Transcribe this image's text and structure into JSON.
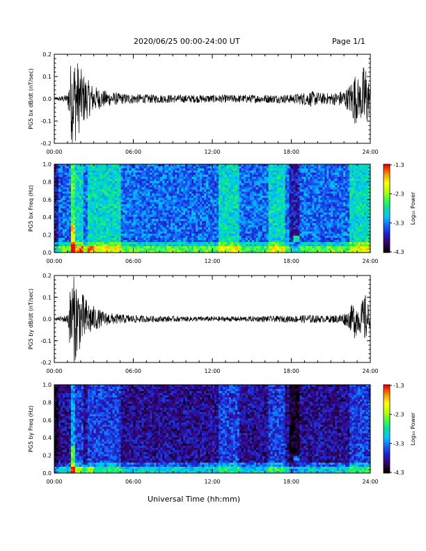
{
  "header": {
    "title": "2020/06/25  00:00-24:00 UT",
    "page": "Page 1/1"
  },
  "xaxis_label": "Universal Time (hh:mm)",
  "colorbar": {
    "label": "Log₁₀ Power",
    "ticks": [
      "-1.3",
      "-2.3",
      "-3.3",
      "-4.3"
    ],
    "colors": [
      "#000000",
      "#3a006e",
      "#2020c8",
      "#1464ff",
      "#00c8ff",
      "#00e0a0",
      "#40ff40",
      "#c0ff00",
      "#ffff00",
      "#ff9000",
      "#ff0000"
    ]
  },
  "chart_data": [
    {
      "type": "line",
      "ylabel": "PG5 bx dB/dt (nT/sec)",
      "xlim": [
        0,
        24
      ],
      "ylim": [
        -0.2,
        0.2
      ],
      "xticks": [
        "00:00",
        "06:00",
        "12:00",
        "18:00",
        "24:00"
      ],
      "yticks": [
        "0.2",
        "0.1",
        "0.0",
        "-0.1",
        "-0.2"
      ],
      "envelope": {
        "x": [
          0,
          1.0,
          1.3,
          1.6,
          2.0,
          2.5,
          3.0,
          3.5,
          4.0,
          5.0,
          7.0,
          10.0,
          14.0,
          18.0,
          19.5,
          20.5,
          21.5,
          22.3,
          22.8,
          23.2,
          23.6,
          24.0
        ],
        "y": [
          0.005,
          0.02,
          0.2,
          0.2,
          0.14,
          0.09,
          0.06,
          0.045,
          0.035,
          0.025,
          0.02,
          0.018,
          0.018,
          0.02,
          0.035,
          0.025,
          0.03,
          0.05,
          0.12,
          0.08,
          0.18,
          0.05
        ]
      }
    },
    {
      "type": "heatmap",
      "ylabel": "PG5 bx Freq (Hz)",
      "xlim": [
        0,
        24
      ],
      "ylim": [
        0,
        1.0
      ],
      "xticks": [
        "00:00",
        "06:00",
        "12:00",
        "18:00",
        "24:00"
      ],
      "yticks": [
        "1.0",
        "0.8",
        "0.6",
        "0.4",
        "0.2",
        "0.0"
      ],
      "colorbar_range": [
        -4.3,
        -1.3
      ],
      "bright_bands_hours": [
        [
          1.2,
          2.2
        ],
        [
          2.5,
          5.0
        ],
        [
          12.5,
          14.0
        ],
        [
          16.2,
          17.6
        ],
        [
          22.5,
          24.0
        ]
      ],
      "dark_bands_hours": [
        [
          0,
          0.3
        ],
        [
          17.8,
          18.7
        ]
      ]
    },
    {
      "type": "line",
      "ylabel": "PG5 by dB/dt (nT/sec)",
      "xlim": [
        0,
        24
      ],
      "ylim": [
        -0.2,
        0.2
      ],
      "xticks": [
        "00:00",
        "06:00",
        "12:00",
        "18:00",
        "24:00"
      ],
      "yticks": [
        "0.2",
        "0.1",
        "0.0",
        "-0.1",
        "-0.2"
      ],
      "envelope": {
        "x": [
          0,
          1.0,
          1.3,
          1.6,
          2.0,
          2.5,
          3.0,
          3.5,
          4.0,
          5.0,
          7.0,
          10.0,
          14.0,
          18.0,
          19.5,
          20.5,
          21.5,
          22.3,
          22.8,
          23.2,
          23.6,
          24.0
        ],
        "y": [
          0.005,
          0.02,
          0.2,
          0.2,
          0.13,
          0.09,
          0.06,
          0.04,
          0.03,
          0.022,
          0.015,
          0.012,
          0.012,
          0.015,
          0.02,
          0.015,
          0.02,
          0.035,
          0.09,
          0.06,
          0.12,
          0.04
        ]
      }
    },
    {
      "type": "heatmap",
      "ylabel": "PG5 by Freq (Hz)",
      "xlim": [
        0,
        24
      ],
      "ylim": [
        0,
        1.0
      ],
      "xticks": [
        "00:00",
        "06:00",
        "12:00",
        "18:00",
        "24:00"
      ],
      "yticks": [
        "1.0",
        "0.8",
        "0.6",
        "0.4",
        "0.2",
        "0.0"
      ],
      "colorbar_range": [
        -4.3,
        -1.3
      ],
      "bright_bands_hours": [
        [
          1.2,
          2.2
        ],
        [
          2.5,
          5.0
        ],
        [
          12.5,
          14.0
        ],
        [
          16.2,
          17.6
        ],
        [
          22.5,
          24.0
        ]
      ],
      "dark_bands_hours": [
        [
          0,
          0.3
        ],
        [
          17.8,
          18.7
        ]
      ]
    }
  ]
}
